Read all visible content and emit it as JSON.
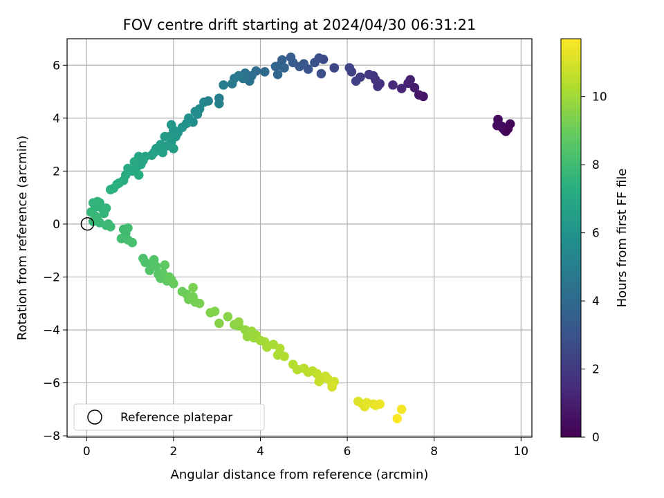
{
  "chart_data": {
    "type": "scatter",
    "title": "FOV centre drift starting at 2024/04/30 06:31:21",
    "xlabel": "Angular distance from reference (arcmin)",
    "ylabel": "Rotation from reference (arcmin)",
    "xlim": [
      -0.45,
      10.25
    ],
    "ylim": [
      -8.05,
      7.0
    ],
    "xticks": [
      0,
      2,
      4,
      6,
      8,
      10
    ],
    "yticks": [
      -8,
      -6,
      -4,
      -2,
      0,
      2,
      4,
      6
    ],
    "grid": true,
    "legend": {
      "entries": [
        "Reference platepar"
      ],
      "placement": "lower-left"
    },
    "reference_point": {
      "x": 0,
      "y": 0,
      "label": "Reference platepar"
    },
    "colorbar": {
      "label": "Hours from first FF file",
      "colormap": "viridis",
      "range": [
        0,
        11.7
      ],
      "ticks": [
        0,
        2,
        4,
        6,
        8,
        10
      ]
    },
    "series": [
      {
        "color_by": "hours",
        "points": [
          {
            "x": 9.62,
            "y": 3.55,
            "h": 0.0
          },
          {
            "x": 9.7,
            "y": 3.6,
            "h": 0.05
          },
          {
            "x": 9.65,
            "y": 3.5,
            "h": 0.1
          },
          {
            "x": 9.58,
            "y": 3.62,
            "h": 0.15
          },
          {
            "x": 9.75,
            "y": 3.78,
            "h": 0.2
          },
          {
            "x": 9.45,
            "y": 3.72,
            "h": 0.25
          },
          {
            "x": 9.47,
            "y": 3.95,
            "h": 0.35
          },
          {
            "x": 9.55,
            "y": 3.7,
            "h": 0.4
          },
          {
            "x": 7.75,
            "y": 4.82,
            "h": 0.6
          },
          {
            "x": 7.65,
            "y": 4.88,
            "h": 0.75
          },
          {
            "x": 7.55,
            "y": 5.15,
            "h": 0.9
          },
          {
            "x": 7.45,
            "y": 5.45,
            "h": 1.05
          },
          {
            "x": 7.4,
            "y": 5.32,
            "h": 1.15
          },
          {
            "x": 7.25,
            "y": 5.12,
            "h": 1.25
          },
          {
            "x": 7.05,
            "y": 5.25,
            "h": 1.4
          },
          {
            "x": 6.75,
            "y": 5.3,
            "h": 1.55
          },
          {
            "x": 6.7,
            "y": 5.2,
            "h": 1.65
          },
          {
            "x": 6.65,
            "y": 5.45,
            "h": 1.75
          },
          {
            "x": 6.6,
            "y": 5.6,
            "h": 1.85
          },
          {
            "x": 6.5,
            "y": 5.65,
            "h": 1.95
          },
          {
            "x": 6.3,
            "y": 5.55,
            "h": 2.05
          },
          {
            "x": 6.2,
            "y": 5.4,
            "h": 2.15
          },
          {
            "x": 6.1,
            "y": 5.75,
            "h": 2.25
          },
          {
            "x": 6.05,
            "y": 5.9,
            "h": 2.35
          },
          {
            "x": 5.7,
            "y": 5.9,
            "h": 2.5
          },
          {
            "x": 5.45,
            "y": 6.22,
            "h": 2.65
          },
          {
            "x": 5.35,
            "y": 6.27,
            "h": 2.75
          },
          {
            "x": 5.4,
            "y": 5.68,
            "h": 2.85
          },
          {
            "x": 5.25,
            "y": 6.1,
            "h": 2.95
          },
          {
            "x": 5.1,
            "y": 5.85,
            "h": 3.05
          },
          {
            "x": 5.0,
            "y": 6.05,
            "h": 3.15
          },
          {
            "x": 4.9,
            "y": 5.95,
            "h": 3.25
          },
          {
            "x": 4.75,
            "y": 6.1,
            "h": 3.35
          },
          {
            "x": 4.7,
            "y": 6.3,
            "h": 3.45
          },
          {
            "x": 4.5,
            "y": 6.2,
            "h": 3.55
          },
          {
            "x": 4.45,
            "y": 6.0,
            "h": 3.65
          },
          {
            "x": 4.55,
            "y": 5.9,
            "h": 3.72
          },
          {
            "x": 4.35,
            "y": 5.95,
            "h": 3.8
          },
          {
            "x": 4.4,
            "y": 5.65,
            "h": 3.9
          },
          {
            "x": 4.1,
            "y": 5.75,
            "h": 4.0
          },
          {
            "x": 3.9,
            "y": 5.78,
            "h": 4.1
          },
          {
            "x": 3.8,
            "y": 5.6,
            "h": 4.2
          },
          {
            "x": 3.75,
            "y": 5.4,
            "h": 4.3
          },
          {
            "x": 3.65,
            "y": 5.7,
            "h": 4.4
          },
          {
            "x": 3.6,
            "y": 5.5,
            "h": 4.5
          },
          {
            "x": 3.5,
            "y": 5.6,
            "h": 4.6
          },
          {
            "x": 3.4,
            "y": 5.5,
            "h": 4.7
          },
          {
            "x": 3.35,
            "y": 5.3,
            "h": 4.8
          },
          {
            "x": 3.15,
            "y": 5.25,
            "h": 4.9
          },
          {
            "x": 3.05,
            "y": 4.75,
            "h": 5.0
          },
          {
            "x": 3.05,
            "y": 4.55,
            "h": 5.1
          },
          {
            "x": 2.8,
            "y": 4.65,
            "h": 5.2
          },
          {
            "x": 2.7,
            "y": 4.6,
            "h": 5.3
          },
          {
            "x": 2.6,
            "y": 4.35,
            "h": 5.4
          },
          {
            "x": 2.55,
            "y": 4.15,
            "h": 5.5
          },
          {
            "x": 2.5,
            "y": 4.25,
            "h": 5.6
          },
          {
            "x": 2.45,
            "y": 3.85,
            "h": 5.7
          },
          {
            "x": 2.35,
            "y": 4.0,
            "h": 5.8
          },
          {
            "x": 2.3,
            "y": 3.8,
            "h": 5.9
          },
          {
            "x": 2.2,
            "y": 3.65,
            "h": 6.0
          },
          {
            "x": 2.1,
            "y": 3.45,
            "h": 6.05
          },
          {
            "x": 2.0,
            "y": 3.55,
            "h": 6.1
          },
          {
            "x": 1.95,
            "y": 3.75,
            "h": 6.15
          },
          {
            "x": 2.05,
            "y": 3.3,
            "h": 6.2
          },
          {
            "x": 1.95,
            "y": 3.1,
            "h": 6.25
          },
          {
            "x": 1.9,
            "y": 3.3,
            "h": 6.3
          },
          {
            "x": 1.8,
            "y": 3.3,
            "h": 6.35
          },
          {
            "x": 1.85,
            "y": 2.95,
            "h": 6.4
          },
          {
            "x": 2.0,
            "y": 2.85,
            "h": 6.45
          },
          {
            "x": 1.7,
            "y": 3.0,
            "h": 6.5
          },
          {
            "x": 1.6,
            "y": 2.85,
            "h": 6.55
          },
          {
            "x": 1.55,
            "y": 2.7,
            "h": 6.6
          },
          {
            "x": 1.75,
            "y": 2.7,
            "h": 6.65
          },
          {
            "x": 1.5,
            "y": 2.6,
            "h": 6.7
          },
          {
            "x": 1.35,
            "y": 2.55,
            "h": 6.75
          },
          {
            "x": 1.3,
            "y": 2.4,
            "h": 6.8
          },
          {
            "x": 1.2,
            "y": 2.55,
            "h": 6.85
          },
          {
            "x": 1.25,
            "y": 2.25,
            "h": 6.9
          },
          {
            "x": 1.15,
            "y": 2.15,
            "h": 6.95
          },
          {
            "x": 1.1,
            "y": 2.35,
            "h": 7.0
          },
          {
            "x": 1.05,
            "y": 2.0,
            "h": 7.05
          },
          {
            "x": 0.95,
            "y": 2.1,
            "h": 7.1
          },
          {
            "x": 0.9,
            "y": 1.85,
            "h": 7.15
          },
          {
            "x": 1.2,
            "y": 1.85,
            "h": 7.2
          },
          {
            "x": 0.85,
            "y": 1.65,
            "h": 7.25
          },
          {
            "x": 0.75,
            "y": 1.55,
            "h": 7.3
          },
          {
            "x": 0.7,
            "y": 1.5,
            "h": 7.35
          },
          {
            "x": 0.55,
            "y": 1.3,
            "h": 7.4
          },
          {
            "x": 0.62,
            "y": 1.35,
            "h": 7.45
          },
          {
            "x": 0.3,
            "y": 0.8,
            "h": 7.5
          },
          {
            "x": 0.35,
            "y": 0.6,
            "h": 7.52
          },
          {
            "x": 0.2,
            "y": 0.65,
            "h": 7.55
          },
          {
            "x": 0.15,
            "y": 0.8,
            "h": 7.58
          },
          {
            "x": 0.25,
            "y": 0.85,
            "h": 7.6
          },
          {
            "x": 0.45,
            "y": 0.6,
            "h": 7.63
          },
          {
            "x": 0.4,
            "y": 0.4,
            "h": 7.66
          },
          {
            "x": 0.1,
            "y": 0.45,
            "h": 7.69
          },
          {
            "x": 0.2,
            "y": 0.3,
            "h": 7.72
          },
          {
            "x": 0.25,
            "y": 0.15,
            "h": 7.75
          },
          {
            "x": 0.3,
            "y": 0.05,
            "h": 7.78
          },
          {
            "x": 0.15,
            "y": 0.1,
            "h": 7.81
          },
          {
            "x": 0.5,
            "y": 0.0,
            "h": 7.84
          },
          {
            "x": 0.45,
            "y": -0.05,
            "h": 7.87
          },
          {
            "x": 0.55,
            "y": -0.1,
            "h": 7.9
          },
          {
            "x": 0.85,
            "y": -0.2,
            "h": 7.95
          },
          {
            "x": 0.9,
            "y": -0.35,
            "h": 8.0
          },
          {
            "x": 0.95,
            "y": -0.15,
            "h": 8.05
          },
          {
            "x": 0.8,
            "y": -0.55,
            "h": 8.1
          },
          {
            "x": 0.95,
            "y": -0.6,
            "h": 8.15
          },
          {
            "x": 1.05,
            "y": -0.7,
            "h": 8.2
          },
          {
            "x": 1.3,
            "y": -1.3,
            "h": 8.3
          },
          {
            "x": 1.35,
            "y": -1.45,
            "h": 8.35
          },
          {
            "x": 1.5,
            "y": -1.55,
            "h": 8.4
          },
          {
            "x": 1.45,
            "y": -1.75,
            "h": 8.45
          },
          {
            "x": 1.55,
            "y": -1.35,
            "h": 8.5
          },
          {
            "x": 1.6,
            "y": -1.6,
            "h": 8.55
          },
          {
            "x": 1.65,
            "y": -1.9,
            "h": 8.6
          },
          {
            "x": 1.7,
            "y": -2.05,
            "h": 8.65
          },
          {
            "x": 1.75,
            "y": -1.85,
            "h": 8.7
          },
          {
            "x": 1.8,
            "y": -1.55,
            "h": 8.75
          },
          {
            "x": 1.85,
            "y": -2.15,
            "h": 8.8
          },
          {
            "x": 1.9,
            "y": -2.0,
            "h": 8.85
          },
          {
            "x": 2.0,
            "y": -2.25,
            "h": 8.9
          },
          {
            "x": 1.95,
            "y": -2.1,
            "h": 8.95
          },
          {
            "x": 2.2,
            "y": -2.55,
            "h": 9.0
          },
          {
            "x": 2.3,
            "y": -2.65,
            "h": 9.05
          },
          {
            "x": 2.35,
            "y": -2.85,
            "h": 9.1
          },
          {
            "x": 2.45,
            "y": -2.75,
            "h": 9.15
          },
          {
            "x": 2.5,
            "y": -2.95,
            "h": 9.2
          },
          {
            "x": 2.6,
            "y": -3.0,
            "h": 9.25
          },
          {
            "x": 2.45,
            "y": -2.4,
            "h": 9.3
          },
          {
            "x": 2.85,
            "y": -3.35,
            "h": 9.4
          },
          {
            "x": 2.95,
            "y": -3.3,
            "h": 9.45
          },
          {
            "x": 3.05,
            "y": -3.75,
            "h": 9.5
          },
          {
            "x": 3.25,
            "y": -3.5,
            "h": 9.55
          },
          {
            "x": 3.4,
            "y": -3.8,
            "h": 9.6
          },
          {
            "x": 3.5,
            "y": -3.85,
            "h": 9.65
          },
          {
            "x": 3.5,
            "y": -3.7,
            "h": 9.7
          },
          {
            "x": 3.65,
            "y": -4.0,
            "h": 9.75
          },
          {
            "x": 3.7,
            "y": -4.25,
            "h": 9.8
          },
          {
            "x": 3.8,
            "y": -4.05,
            "h": 9.85
          },
          {
            "x": 3.85,
            "y": -4.3,
            "h": 9.9
          },
          {
            "x": 3.9,
            "y": -4.2,
            "h": 9.95
          },
          {
            "x": 4.0,
            "y": -4.4,
            "h": 10.0
          },
          {
            "x": 4.1,
            "y": -4.45,
            "h": 10.05
          },
          {
            "x": 4.15,
            "y": -4.65,
            "h": 10.1
          },
          {
            "x": 4.3,
            "y": -4.55,
            "h": 10.15
          },
          {
            "x": 4.4,
            "y": -4.95,
            "h": 10.2
          },
          {
            "x": 4.45,
            "y": -4.7,
            "h": 10.25
          },
          {
            "x": 4.55,
            "y": -5.0,
            "h": 10.3
          },
          {
            "x": 4.75,
            "y": -5.3,
            "h": 10.35
          },
          {
            "x": 4.85,
            "y": -5.5,
            "h": 10.4
          },
          {
            "x": 5.0,
            "y": -5.45,
            "h": 10.45
          },
          {
            "x": 5.1,
            "y": -5.6,
            "h": 10.5
          },
          {
            "x": 5.2,
            "y": -5.55,
            "h": 10.55
          },
          {
            "x": 5.3,
            "y": -5.65,
            "h": 10.6
          },
          {
            "x": 5.4,
            "y": -5.8,
            "h": 10.65
          },
          {
            "x": 5.35,
            "y": -5.95,
            "h": 10.7
          },
          {
            "x": 5.5,
            "y": -5.75,
            "h": 10.75
          },
          {
            "x": 5.55,
            "y": -5.85,
            "h": 10.8
          },
          {
            "x": 5.65,
            "y": -6.05,
            "h": 10.85
          },
          {
            "x": 5.7,
            "y": -5.95,
            "h": 10.9
          },
          {
            "x": 5.65,
            "y": -6.15,
            "h": 10.95
          },
          {
            "x": 6.25,
            "y": -6.7,
            "h": 11.1
          },
          {
            "x": 6.35,
            "y": -6.8,
            "h": 11.15
          },
          {
            "x": 6.4,
            "y": -6.9,
            "h": 11.2
          },
          {
            "x": 6.45,
            "y": -6.75,
            "h": 11.25
          },
          {
            "x": 6.6,
            "y": -6.8,
            "h": 11.3
          },
          {
            "x": 6.65,
            "y": -6.85,
            "h": 11.35
          },
          {
            "x": 6.75,
            "y": -6.8,
            "h": 11.4
          },
          {
            "x": 7.25,
            "y": -7.0,
            "h": 11.55
          },
          {
            "x": 7.15,
            "y": -7.35,
            "h": 11.65
          }
        ]
      }
    ]
  }
}
